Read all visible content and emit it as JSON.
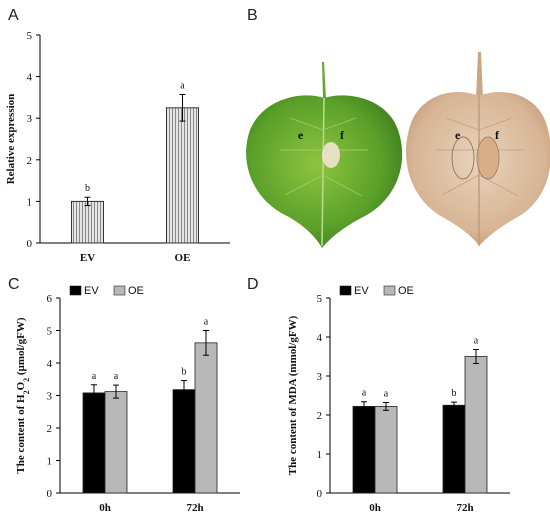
{
  "panels": {
    "A": "A",
    "B": "B",
    "C": "C",
    "D": "D"
  },
  "leaves": {
    "left": {
      "label_e": "e",
      "label_f": "f"
    },
    "right": {
      "label_e": "e",
      "label_f": "f"
    }
  },
  "colors": {
    "ev": "#000000",
    "oe": "#b8b8b8",
    "hatch": "#a9a9a9"
  },
  "chart_data": [
    {
      "panel": "A",
      "type": "bar",
      "ylabel": "Relative expression",
      "categories": [
        "EV",
        "OE"
      ],
      "values": [
        1.0,
        3.25
      ],
      "errors": [
        0.1,
        0.32
      ],
      "letters": [
        "b",
        "a"
      ],
      "ylim": [
        0,
        5
      ],
      "yticks": [
        "0",
        "1",
        "2",
        "3",
        "4",
        "5"
      ],
      "grid": false
    },
    {
      "panel": "C",
      "type": "bar",
      "ylabel_parts": [
        "The content of H",
        "2",
        "O",
        "2",
        " (µmol/gFW)"
      ],
      "categories": [
        "0h",
        "72h"
      ],
      "series": [
        {
          "name": "EV",
          "values": [
            3.08,
            3.18
          ],
          "errors": [
            0.25,
            0.28
          ],
          "letters": [
            "a",
            "b"
          ]
        },
        {
          "name": "OE",
          "values": [
            3.12,
            4.62
          ],
          "errors": [
            0.2,
            0.38
          ],
          "letters": [
            "a",
            "a"
          ]
        }
      ],
      "ylim": [
        0,
        6
      ],
      "yticks": [
        "0",
        "1",
        "2",
        "3",
        "4",
        "5",
        "6"
      ],
      "legend": "top-left",
      "grid": false
    },
    {
      "panel": "D",
      "type": "bar",
      "ylabel": "The content of MDA (mmol/gFW)",
      "categories": [
        "0h",
        "72h"
      ],
      "series": [
        {
          "name": "EV",
          "values": [
            2.22,
            2.25
          ],
          "errors": [
            0.12,
            0.08
          ],
          "letters": [
            "a",
            "b"
          ]
        },
        {
          "name": "OE",
          "values": [
            2.22,
            3.5
          ],
          "errors": [
            0.1,
            0.18
          ],
          "letters": [
            "a",
            "a"
          ]
        }
      ],
      "ylim": [
        0,
        5
      ],
      "yticks": [
        "0",
        "1",
        "2",
        "3",
        "4",
        "5"
      ],
      "legend": "top-left",
      "grid": false
    }
  ]
}
